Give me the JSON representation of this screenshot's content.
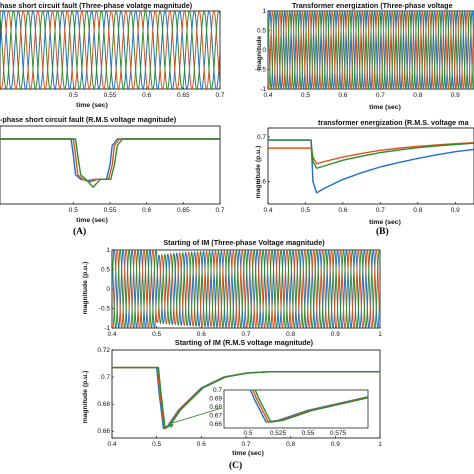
{
  "colors": {
    "phase_a": "#1f6fc2",
    "phase_b": "#e0531c",
    "phase_c": "#2e8b2e",
    "frame": "#000000"
  },
  "panels": {
    "A": {
      "label": "(A)"
    },
    "B": {
      "label": "(B)"
    },
    "C": {
      "label": "(C)"
    }
  },
  "chart_data": [
    {
      "id": "a-top",
      "type": "line",
      "title": "hase short circuit fault (Three-phase volatge magnitude)",
      "xlabel": "time (sec)",
      "ylabel": "",
      "xlim": [
        0.4,
        0.7
      ],
      "xticks": [
        "0.5",
        "0.55",
        "0.6",
        "0.65",
        "0.7"
      ],
      "yticks": [],
      "grid": false,
      "series": [
        {
          "phase": "a",
          "kind": "sine",
          "amplitude": 1,
          "freq_hz": 50,
          "phase_deg": 0
        },
        {
          "phase": "b",
          "kind": "sine",
          "amplitude": 1,
          "freq_hz": 50,
          "phase_deg": -120
        },
        {
          "phase": "c",
          "kind": "sine",
          "amplitude": 1,
          "freq_hz": 50,
          "phase_deg": 120
        }
      ],
      "fault_interval": [
        0.5,
        0.55
      ]
    },
    {
      "id": "a-bottom",
      "type": "line",
      "title": "-phase short circuit fault (R.M.S voltage magnitude)",
      "xlabel": "time (sec)",
      "ylabel": "",
      "xlim": [
        0.4,
        0.7
      ],
      "ylim": [
        0,
        1.2
      ],
      "xticks": [
        "0.5",
        "0.55",
        "0.6",
        "0.65",
        "0.7"
      ],
      "yticks": [],
      "grid": false,
      "series": [
        {
          "phase": "a",
          "x": [
            0.4,
            0.497,
            0.5,
            0.503,
            0.51,
            0.52,
            0.53,
            0.545,
            0.55,
            0.553,
            0.56,
            0.7
          ],
          "y": [
            1.0,
            1.0,
            0.75,
            0.45,
            0.38,
            0.36,
            0.38,
            0.38,
            0.6,
            0.9,
            1.0,
            1.0
          ]
        },
        {
          "phase": "b",
          "x": [
            0.4,
            0.5,
            0.503,
            0.506,
            0.513,
            0.523,
            0.533,
            0.548,
            0.553,
            0.556,
            0.563,
            0.7
          ],
          "y": [
            1.0,
            1.0,
            0.75,
            0.45,
            0.38,
            0.34,
            0.38,
            0.38,
            0.6,
            0.9,
            1.0,
            1.0
          ]
        },
        {
          "phase": "c",
          "x": [
            0.4,
            0.503,
            0.506,
            0.51,
            0.517,
            0.527,
            0.537,
            0.551,
            0.556,
            0.56,
            0.567,
            0.7
          ],
          "y": [
            1.0,
            1.0,
            0.75,
            0.45,
            0.38,
            0.26,
            0.38,
            0.38,
            0.6,
            0.9,
            1.0,
            1.0
          ]
        }
      ]
    },
    {
      "id": "b-top",
      "type": "line",
      "title": "Transformer energization (Three-phase voltage",
      "xlabel": "time (sec)",
      "ylabel": "magnitude",
      "xlim": [
        0.4,
        0.95
      ],
      "ylim": [
        -1,
        1
      ],
      "xticks": [
        "0.4",
        "0.5",
        "0.6",
        "0.7",
        "0.8",
        "0.9"
      ],
      "yticks": [
        "-1",
        "-0.5",
        "0",
        "0.5",
        "1"
      ],
      "grid": false,
      "series": [
        {
          "phase": "a",
          "kind": "sine",
          "amplitude": 1,
          "freq_hz": 50,
          "phase_deg": 0
        },
        {
          "phase": "b",
          "kind": "sine",
          "amplitude": 1,
          "freq_hz": 50,
          "phase_deg": -120
        },
        {
          "phase": "c",
          "kind": "sine",
          "amplitude": 1,
          "freq_hz": 50,
          "phase_deg": 120
        }
      ]
    },
    {
      "id": "b-bottom",
      "type": "line",
      "title": "transformer energization (R.M.S. voltage ma",
      "xlabel": "time (sec)",
      "ylabel": "magnitude (p.u.)",
      "xlim": [
        0.4,
        0.95
      ],
      "ylim": [
        0.55,
        0.72
      ],
      "xticks": [
        "0.4",
        "0.5",
        "0.6",
        "0.7",
        "0.8",
        "0.9"
      ],
      "yticks": [
        "0.6",
        "0.7"
      ],
      "grid": false,
      "series": [
        {
          "phase": "a",
          "x": [
            0.4,
            0.515,
            0.52,
            0.53,
            0.55,
            0.6,
            0.65,
            0.7,
            0.75,
            0.8,
            0.85,
            0.9,
            0.95
          ],
          "y": [
            0.693,
            0.693,
            0.6,
            0.575,
            0.585,
            0.605,
            0.62,
            0.633,
            0.643,
            0.652,
            0.66,
            0.667,
            0.672
          ]
        },
        {
          "phase": "b",
          "x": [
            0.4,
            0.515,
            0.52,
            0.53,
            0.55,
            0.6,
            0.65,
            0.7,
            0.75,
            0.8,
            0.85,
            0.9,
            0.95
          ],
          "y": [
            0.675,
            0.675,
            0.655,
            0.64,
            0.645,
            0.655,
            0.663,
            0.67,
            0.675,
            0.679,
            0.682,
            0.685,
            0.687
          ]
        },
        {
          "phase": "c",
          "x": [
            0.4,
            0.515,
            0.52,
            0.53,
            0.55,
            0.6,
            0.65,
            0.7,
            0.75,
            0.8,
            0.85,
            0.9,
            0.95
          ],
          "y": [
            0.693,
            0.693,
            0.645,
            0.63,
            0.635,
            0.648,
            0.657,
            0.665,
            0.671,
            0.676,
            0.68,
            0.683,
            0.686
          ]
        }
      ]
    },
    {
      "id": "c-top",
      "type": "line",
      "title": "Starting of IM (Three-phase Voltage magnitude)",
      "xlabel": "",
      "ylabel": "magnitude (p.u.)",
      "xlim": [
        0.4,
        1
      ],
      "ylim": [
        -1,
        1
      ],
      "xticks": [
        "0.4",
        "0.5",
        "0.6",
        "0.7",
        "0.8",
        "0.9",
        "1"
      ],
      "yticks": [
        "-1",
        "-0.5",
        "0",
        "0.5",
        "1"
      ],
      "grid": false,
      "series": [
        {
          "phase": "a",
          "kind": "sine",
          "amplitude": 1,
          "freq_hz": 50,
          "phase_deg": 0,
          "dip_at": 0.5
        },
        {
          "phase": "b",
          "kind": "sine",
          "amplitude": 1,
          "freq_hz": 50,
          "phase_deg": -120,
          "dip_at": 0.5
        },
        {
          "phase": "c",
          "kind": "sine",
          "amplitude": 1,
          "freq_hz": 50,
          "phase_deg": 120,
          "dip_at": 0.5
        }
      ]
    },
    {
      "id": "c-bottom",
      "type": "line",
      "title": "Starting of IM (R.M.S voltage magnitude)",
      "xlabel": "time (sec)",
      "ylabel": "magnitude (p.u.)",
      "xlim": [
        0.4,
        1
      ],
      "ylim": [
        0.655,
        0.72
      ],
      "xticks": [
        "0.4",
        "0.5",
        "0.6",
        "0.7",
        "0.8",
        "0.9",
        "1"
      ],
      "yticks": [
        "0.66",
        "0.68",
        "0.7",
        "0.72"
      ],
      "grid": false,
      "series": [
        {
          "phase": "a",
          "x": [
            0.4,
            0.5,
            0.505,
            0.515,
            0.525,
            0.55,
            0.6,
            0.65,
            0.7,
            0.75,
            0.8,
            1
          ],
          "y": [
            0.707,
            0.707,
            0.69,
            0.662,
            0.664,
            0.676,
            0.692,
            0.7,
            0.703,
            0.704,
            0.704,
            0.704
          ]
        },
        {
          "phase": "b",
          "x": [
            0.4,
            0.502,
            0.507,
            0.517,
            0.527,
            0.552,
            0.602,
            0.652,
            0.702,
            0.752,
            0.802,
            1
          ],
          "y": [
            0.707,
            0.707,
            0.69,
            0.662,
            0.664,
            0.676,
            0.692,
            0.7,
            0.703,
            0.704,
            0.704,
            0.704
          ]
        },
        {
          "phase": "c",
          "x": [
            0.4,
            0.504,
            0.509,
            0.519,
            0.529,
            0.554,
            0.604,
            0.654,
            0.704,
            0.754,
            0.804,
            1
          ],
          "y": [
            0.707,
            0.707,
            0.69,
            0.662,
            0.664,
            0.676,
            0.692,
            0.7,
            0.703,
            0.704,
            0.704,
            0.704
          ]
        }
      ],
      "inset": {
        "xlim": [
          0.48,
          0.6
        ],
        "ylim": [
          0.655,
          0.7
        ],
        "xticks": [
          "0.5",
          "0.525",
          "0.55",
          "0.575"
        ],
        "yticks": [
          "0.66",
          "0.67",
          "0.68",
          "0.69",
          "0.7"
        ]
      }
    }
  ]
}
